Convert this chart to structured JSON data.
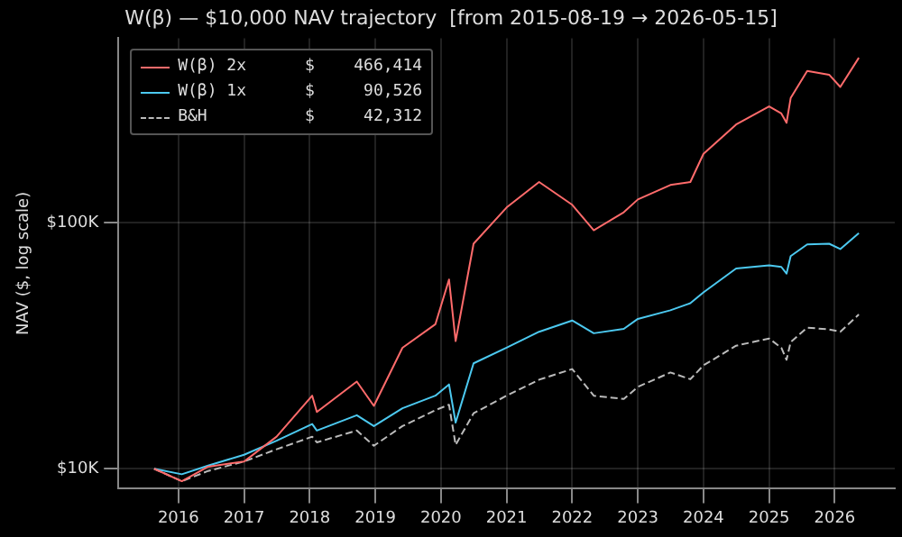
{
  "chart_data": {
    "type": "line",
    "title": "W(β) — $10,000 NAV trajectory  [from 2015-08-19 → 2026-05-15]",
    "ylabel": "NAV ($, log scale)",
    "log": "y",
    "grid": true,
    "legend": "top left",
    "marker": "none",
    "xlim": [
      "2015-02-01",
      "2026-12-01"
    ],
    "xticks": [
      "2016",
      "2017",
      "2018",
      "2019",
      "2020",
      "2021",
      "2022",
      "2023",
      "2024",
      "2025",
      "2026"
    ],
    "ylim": [
      8300,
      560000
    ],
    "yticks": [
      {
        "value": 10000,
        "label": "$10K"
      },
      {
        "value": 100000,
        "label": "$100K"
      }
    ],
    "x": [
      "2015-08-19",
      "2016-01-20",
      "2016-06-15",
      "2017-01-01",
      "2017-07-01",
      "2018-01-15",
      "2018-02-10",
      "2018-09-20",
      "2018-12-24",
      "2019-06-01",
      "2019-12-01",
      "2020-02-15",
      "2020-03-23",
      "2020-07-01",
      "2021-01-01",
      "2021-07-01",
      "2022-01-01",
      "2022-05-01",
      "2022-10-15",
      "2023-01-01",
      "2023-07-01",
      "2023-10-20",
      "2024-01-01",
      "2024-07-01",
      "2025-01-01",
      "2025-03-10",
      "2025-04-08",
      "2025-05-01",
      "2025-08-01",
      "2025-12-01",
      "2026-02-01",
      "2026-05-15"
    ],
    "series": [
      {
        "name": "W(β) 2x      $    466,414",
        "color": "#ff6b6b",
        "line_style": "solid",
        "values": [
          10000,
          8900,
          10200,
          10700,
          13500,
          19800,
          17000,
          22600,
          18000,
          31000,
          38600,
          58700,
          33000,
          82000,
          115000,
          146000,
          118000,
          93000,
          110000,
          124000,
          142000,
          146000,
          190000,
          250000,
          296000,
          277000,
          254000,
          320000,
          412000,
          398000,
          355000,
          466414
        ]
      },
      {
        "name": "W(β) 1x      $     90,526",
        "color": "#4cc9f0",
        "line_style": "solid",
        "values": [
          10000,
          9500,
          10300,
          11400,
          13000,
          15200,
          14300,
          16500,
          14900,
          17600,
          19800,
          22000,
          15400,
          26800,
          31000,
          36000,
          40000,
          35500,
          37000,
          40600,
          44000,
          47000,
          52000,
          65000,
          67000,
          66000,
          62000,
          73000,
          81500,
          82000,
          78000,
          90526
        ]
      },
      {
        "name": "B&H          $     42,312",
        "color": "#bbbbbb",
        "line_style": "dashed",
        "values": [
          10000,
          8900,
          9800,
          10700,
          12000,
          13500,
          12800,
          14300,
          12400,
          14900,
          17300,
          18200,
          12500,
          16800,
          19800,
          23000,
          25400,
          19800,
          19200,
          21500,
          24600,
          23100,
          26300,
          31600,
          33800,
          31000,
          27700,
          32700,
          37400,
          36800,
          36000,
          42312
        ]
      }
    ]
  }
}
